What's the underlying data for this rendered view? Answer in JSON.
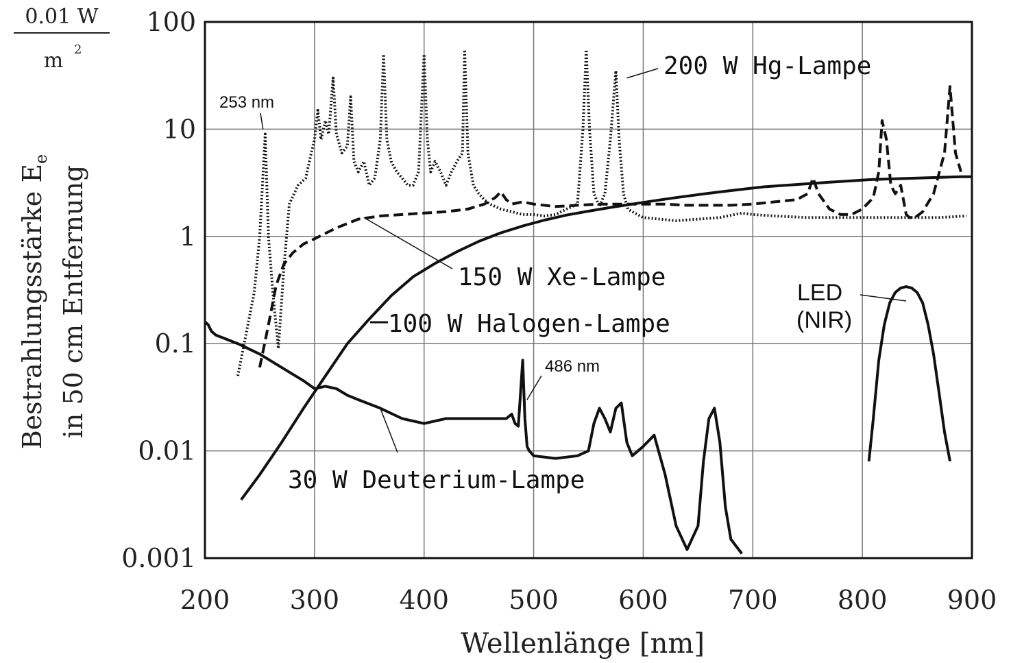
{
  "chart_data": {
    "type": "line",
    "x_scale": "linear",
    "y_scale": "log",
    "xlim": [
      200,
      900
    ],
    "ylim": [
      0.001,
      100
    ],
    "grid": true,
    "xlabel": "Wellenlänge [nm]",
    "ylabel_line1": "Bestrahlungsstärke E",
    "ylabel_subscript": "e",
    "ylabel_line2": "in 50 cm Entfernung",
    "unit_top": "0.01  W",
    "unit_bottom": "m",
    "unit_bottom_exponent": "2",
    "x_ticks": [
      {
        "value": 200,
        "label": "200"
      },
      {
        "value": 300,
        "label": "300"
      },
      {
        "value": 400,
        "label": "400"
      },
      {
        "value": 500,
        "label": "500"
      },
      {
        "value": 600,
        "label": "600"
      },
      {
        "value": 700,
        "label": "700"
      },
      {
        "value": 800,
        "label": "800"
      },
      {
        "value": 900,
        "label": "900"
      }
    ],
    "y_ticks": [
      {
        "value": 100,
        "label": "100"
      },
      {
        "value": 10,
        "label": "10"
      },
      {
        "value": 1,
        "label": "1"
      },
      {
        "value": 0.1,
        "label": "0.1"
      },
      {
        "value": 0.01,
        "label": "0.01"
      },
      {
        "value": 0.001,
        "label": "0.001"
      }
    ],
    "series": [
      {
        "name": "200 W Hg-Lampe",
        "style": "dotted",
        "color": "#111111",
        "x": [
          230,
          245,
          250,
          255,
          258,
          262,
          267,
          272,
          277,
          285,
          292,
          297,
          300,
          303,
          306,
          310,
          313,
          317,
          320,
          325,
          330,
          333,
          336,
          340,
          345,
          350,
          355,
          360,
          363,
          366,
          370,
          375,
          380,
          385,
          390,
          395,
          400,
          403,
          406,
          410,
          415,
          420,
          425,
          430,
          435,
          437,
          440,
          445,
          450,
          455,
          460,
          470,
          480,
          490,
          500,
          510,
          520,
          530,
          540,
          545,
          548,
          551,
          555,
          560,
          565,
          570,
          575,
          578,
          582,
          586,
          590,
          595,
          600,
          615,
          630,
          650,
          670,
          690,
          700,
          720,
          750,
          780,
          800,
          820,
          840,
          870,
          895
        ],
        "y": [
          0.05,
          0.3,
          1,
          9,
          1,
          0.3,
          0.09,
          0.5,
          2,
          3,
          3.5,
          6,
          8,
          15,
          8,
          12,
          9,
          30,
          9,
          6,
          7,
          20,
          5,
          4,
          5,
          3,
          3.5,
          8,
          50,
          8,
          5,
          4,
          3.5,
          3,
          3,
          4,
          50,
          8,
          4,
          5,
          4,
          3,
          4,
          5,
          6,
          55,
          6,
          3,
          2.5,
          2.2,
          2,
          1.8,
          1.7,
          1.6,
          1.6,
          1.55,
          1.6,
          1.8,
          2,
          10,
          55,
          10,
          2.5,
          1.9,
          2.5,
          8,
          35,
          8,
          2.5,
          1.8,
          1.7,
          1.6,
          1.5,
          1.45,
          1.4,
          1.45,
          1.5,
          1.65,
          1.6,
          1.55,
          1.5,
          1.5,
          1.5,
          1.5,
          1.5,
          1.5,
          1.55
        ]
      },
      {
        "name": "150 W Xe-Lampe",
        "style": "dashed",
        "color": "#111111",
        "x": [
          250,
          258,
          265,
          272,
          280,
          290,
          300,
          320,
          340,
          360,
          380,
          400,
          420,
          440,
          455,
          465,
          470,
          475,
          480,
          490,
          500,
          520,
          540,
          560,
          580,
          600,
          620,
          640,
          660,
          680,
          700,
          720,
          740,
          750,
          755,
          760,
          770,
          780,
          790,
          800,
          810,
          815,
          818,
          822,
          826,
          830,
          835,
          840,
          843,
          848,
          855,
          865,
          875,
          880,
          885,
          890
        ],
        "y": [
          0.06,
          0.15,
          0.35,
          0.55,
          0.7,
          0.85,
          0.95,
          1.2,
          1.45,
          1.55,
          1.6,
          1.65,
          1.7,
          1.8,
          2,
          2.3,
          2.6,
          2.2,
          2,
          2.1,
          2,
          1.9,
          1.95,
          2,
          2,
          2,
          2,
          1.95,
          1.95,
          1.95,
          2,
          2.1,
          2.2,
          2.5,
          3.5,
          2.5,
          1.8,
          1.6,
          1.6,
          1.8,
          2.3,
          4,
          12,
          8,
          3,
          2.5,
          3,
          1.6,
          1.5,
          1.5,
          1.7,
          2.5,
          6,
          25,
          6,
          4
        ]
      },
      {
        "name": "100 W Halogen-Lampe",
        "style": "solid",
        "color": "#111111",
        "x": [
          233,
          250,
          270,
          290,
          310,
          330,
          350,
          370,
          390,
          410,
          430,
          450,
          470,
          490,
          510,
          530,
          550,
          570,
          590,
          610,
          630,
          650,
          670,
          690,
          710,
          730,
          750,
          770,
          790,
          810,
          830,
          850,
          870,
          890,
          900
        ],
        "y": [
          0.0035,
          0.006,
          0.012,
          0.025,
          0.05,
          0.1,
          0.17,
          0.28,
          0.42,
          0.56,
          0.72,
          0.9,
          1.08,
          1.25,
          1.42,
          1.58,
          1.72,
          1.86,
          2,
          2.15,
          2.3,
          2.45,
          2.6,
          2.75,
          2.9,
          3.0,
          3.1,
          3.2,
          3.3,
          3.4,
          3.45,
          3.5,
          3.55,
          3.6,
          3.6
        ]
      },
      {
        "name": "30 W Deuterium-Lampe",
        "style": "solid",
        "color": "#111111",
        "x": [
          200,
          203,
          206,
          210,
          230,
          250,
          270,
          290,
          300,
          310,
          320,
          330,
          340,
          360,
          380,
          400,
          420,
          440,
          460,
          475,
          480,
          483,
          486,
          490,
          492,
          494,
          496,
          500,
          520,
          540,
          550,
          555,
          560,
          565,
          570,
          575,
          580,
          585,
          590,
          600,
          610,
          620,
          630,
          640,
          650,
          655,
          660,
          665,
          670,
          675,
          680,
          690
        ],
        "y": [
          0.16,
          0.15,
          0.13,
          0.12,
          0.1,
          0.08,
          0.06,
          0.045,
          0.038,
          0.04,
          0.038,
          0.033,
          0.03,
          0.025,
          0.02,
          0.018,
          0.02,
          0.02,
          0.02,
          0.02,
          0.022,
          0.018,
          0.017,
          0.07,
          0.02,
          0.011,
          0.01,
          0.009,
          0.0085,
          0.009,
          0.01,
          0.018,
          0.025,
          0.02,
          0.015,
          0.025,
          0.028,
          0.012,
          0.009,
          0.011,
          0.014,
          0.006,
          0.002,
          0.0012,
          0.002,
          0.008,
          0.02,
          0.025,
          0.012,
          0.003,
          0.0015,
          0.0011
        ]
      },
      {
        "name": "LED (NIR)",
        "style": "solid",
        "color": "#111111",
        "x": [
          806,
          810,
          815,
          820,
          825,
          830,
          835,
          840,
          845,
          850,
          855,
          860,
          865,
          870,
          875,
          880
        ],
        "y": [
          0.008,
          0.02,
          0.07,
          0.15,
          0.24,
          0.3,
          0.33,
          0.34,
          0.33,
          0.3,
          0.24,
          0.15,
          0.08,
          0.035,
          0.015,
          0.008
        ]
      }
    ],
    "annotations": [
      {
        "text": "200 W Hg-Lampe",
        "points_to": {
          "x": 585,
          "y": 30
        }
      },
      {
        "text": "150 W Xe-Lampe",
        "points_to": {
          "x": 345,
          "y": 1.5
        }
      },
      {
        "text": "100 W Halogen-Lampe",
        "points_to": null
      },
      {
        "text": "30 W Deuterium-Lampe",
        "points_to": {
          "x": 360,
          "y": 0.025
        }
      },
      {
        "text": "253 nm",
        "points_to": {
          "x": 253,
          "y": 10
        }
      },
      {
        "text": "486 nm",
        "points_to": {
          "x": 494,
          "y": 0.03
        }
      },
      {
        "text": "LED",
        "points_to": null
      },
      {
        "text": "(NIR)",
        "points_to": {
          "x": 840,
          "y": 0.25
        }
      }
    ]
  }
}
